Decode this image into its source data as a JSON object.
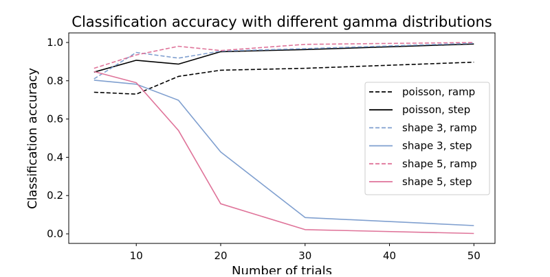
{
  "chart_data": {
    "type": "line",
    "title": "Classification accuracy with different gamma distributions",
    "xlabel": "Number of trials",
    "ylabel": "Classification accuracy",
    "xlim": [
      2,
      52.5
    ],
    "ylim": [
      -0.05,
      1.05
    ],
    "xticks": [
      10,
      20,
      30,
      40,
      50
    ],
    "yticks": [
      0.0,
      0.2,
      0.4,
      0.6,
      0.8,
      1.0
    ],
    "ytick_labels": [
      "0.0",
      "0.2",
      "0.4",
      "0.6",
      "0.8",
      "1.0"
    ],
    "grid": false,
    "legend_position": "center-right",
    "x": [
      5,
      10,
      15,
      20,
      30,
      50
    ],
    "series": [
      {
        "name": "poisson, ramp",
        "color": "#000000",
        "dash": "dashed",
        "values": [
          0.74,
          0.73,
          0.823,
          0.855,
          0.865,
          0.897
        ]
      },
      {
        "name": "poisson, step",
        "color": "#000000",
        "dash": "solid",
        "values": [
          0.845,
          0.907,
          0.887,
          0.952,
          0.963,
          0.992
        ]
      },
      {
        "name": "shape 3, ramp",
        "color": "#7f9fcf",
        "dash": "dashed",
        "values": [
          0.81,
          0.948,
          0.918,
          0.955,
          0.968,
          0.996
        ]
      },
      {
        "name": "shape 3, step",
        "color": "#7f9fcf",
        "dash": "solid",
        "values": [
          0.803,
          0.782,
          0.698,
          0.428,
          0.085,
          0.043
        ]
      },
      {
        "name": "shape 5, ramp",
        "color": "#df7399",
        "dash": "dashed",
        "values": [
          0.865,
          0.935,
          0.98,
          0.958,
          0.99,
          1.0
        ]
      },
      {
        "name": "shape 5, step",
        "color": "#df7399",
        "dash": "solid",
        "values": [
          0.848,
          0.79,
          0.54,
          0.157,
          0.022,
          0.002
        ]
      }
    ]
  }
}
